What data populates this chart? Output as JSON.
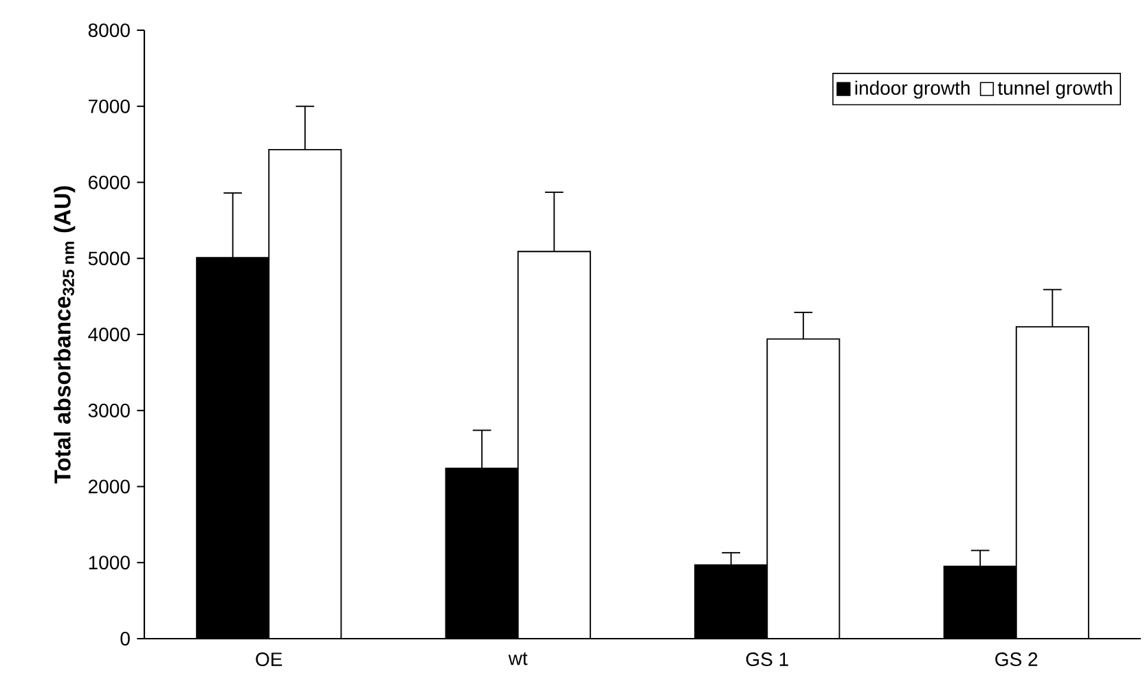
{
  "chart_data": {
    "type": "bar",
    "ylabel": "Total absorbance$_{325 nm}$ (AU)",
    "categories": [
      "OE",
      "wt",
      "GS 1",
      "GS 2"
    ],
    "series": [
      {
        "name": "indoor growth",
        "color": "#000000",
        "values": [
          5010,
          2240,
          970,
          950
        ],
        "errors": [
          [
            5010,
            5860
          ],
          [
            2240,
            2740
          ],
          [
            970,
            1130
          ],
          [
            950,
            1160
          ]
        ]
      },
      {
        "name": "tunnel growth",
        "color": "#ffffff",
        "values": [
          6430,
          5090,
          3940,
          4100
        ],
        "errors": [
          [
            6430,
            7000
          ],
          [
            5090,
            5870
          ],
          [
            3940,
            4290
          ],
          [
            4100,
            4590
          ]
        ]
      }
    ],
    "ylim": [
      0,
      8000
    ],
    "yticks": [
      0,
      1000,
      2000,
      3000,
      4000,
      5000,
      6000,
      7000,
      8000
    ],
    "legend": "top right",
    "grid": false
  }
}
